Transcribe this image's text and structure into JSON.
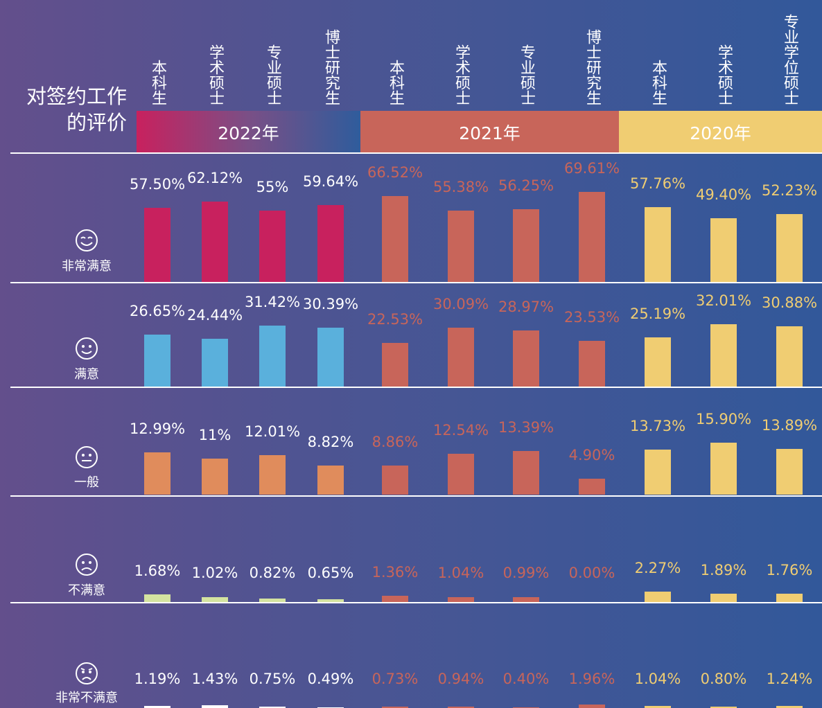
{
  "chart_data": {
    "type": "bar",
    "title": "对签约工作的评价",
    "groups": [
      {
        "name": "2022年",
        "categories": [
          "本科生",
          "学术硕士",
          "专业硕士",
          "博士研究生"
        ],
        "label_color": "#ffffff"
      },
      {
        "name": "2021年",
        "categories": [
          "本科生",
          "学术硕士",
          "专业硕士",
          "博士研究生"
        ],
        "color": "#c8655a",
        "label_color": "#c8655a"
      },
      {
        "name": "2020年",
        "categories": [
          "本科生",
          "学术硕士",
          "专业学位硕士"
        ],
        "color": "#f0cd72",
        "label_color": "#f0cd72"
      }
    ],
    "series": [
      {
        "name": "非常满意",
        "color": "#c8215e",
        "values": [
          57.5,
          62.12,
          55,
          59.64,
          66.52,
          55.38,
          56.25,
          69.61,
          57.76,
          49.4,
          52.23
        ],
        "value_labels": [
          "57.50%",
          "62.12%",
          "55%",
          "59.64%",
          "66.52%",
          "55.38%",
          "56.25%",
          "69.61%",
          "57.76%",
          "49.40%",
          "52.23%"
        ]
      },
      {
        "name": "满意",
        "color": "#5ab0dc",
        "values": [
          26.65,
          24.44,
          31.42,
          30.39,
          22.53,
          30.09,
          28.97,
          23.53,
          25.19,
          32.01,
          30.88
        ],
        "value_labels": [
          "26.65%",
          "24.44%",
          "31.42%",
          "30.39%",
          "22.53%",
          "30.09%",
          "28.97%",
          "23.53%",
          "25.19%",
          "32.01%",
          "30.88%"
        ]
      },
      {
        "name": "一般",
        "color": "#e08c5c",
        "values": [
          12.99,
          11,
          12.01,
          8.82,
          8.86,
          12.54,
          13.39,
          4.9,
          13.73,
          15.9,
          13.89
        ],
        "value_labels": [
          "12.99%",
          "11%",
          "12.01%",
          "8.82%",
          "8.86%",
          "12.54%",
          "13.39%",
          "4.90%",
          "13.73%",
          "15.90%",
          "13.89%"
        ]
      },
      {
        "name": "不满意",
        "color": "#d4e3a0",
        "values": [
          1.68,
          1.02,
          0.82,
          0.65,
          1.36,
          1.04,
          0.99,
          0,
          2.27,
          1.89,
          1.76
        ],
        "value_labels": [
          "1.68%",
          "1.02%",
          "0.82%",
          "0.65%",
          "1.36%",
          "1.04%",
          "0.99%",
          "0.00%",
          "2.27%",
          "1.89%",
          "1.76%"
        ]
      },
      {
        "name": "非常不满意",
        "color": "#ffffff",
        "values": [
          1.19,
          1.43,
          0.75,
          0.49,
          0.73,
          0.94,
          0.4,
          1.96,
          1.04,
          0.8,
          1.24
        ],
        "value_labels": [
          "1.19%",
          "1.43%",
          "0.75%",
          "0.49%",
          "0.73%",
          "0.94%",
          "0.40%",
          "1.96%",
          "1.04%",
          "0.80%",
          "1.24%"
        ]
      }
    ]
  }
}
